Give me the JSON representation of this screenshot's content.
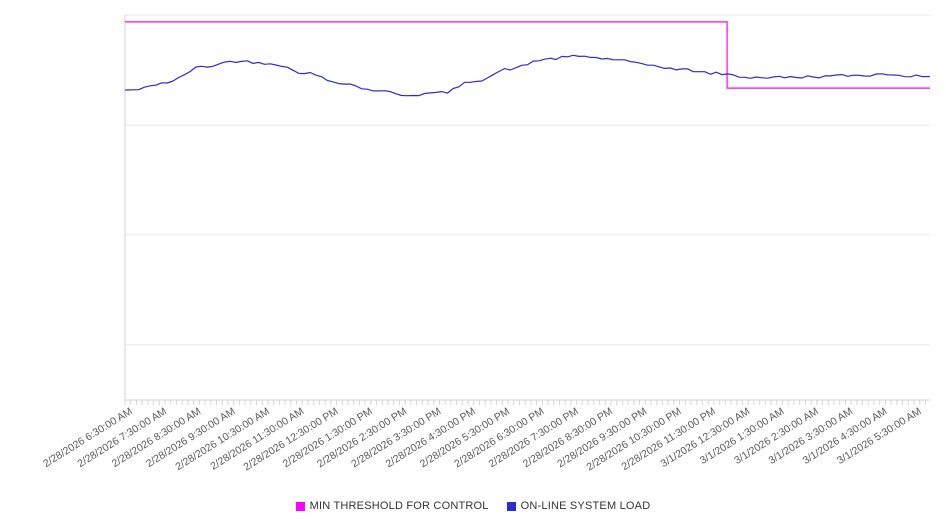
{
  "chart_data": {
    "type": "line",
    "title": "",
    "legend_position": "bottom",
    "value_scale": "percent-of-plot-height (no y-axis tick labels visible)",
    "ylim": [
      0,
      100
    ],
    "grid": {
      "horizontal_values": [
        14.3,
        42.9,
        71.4,
        100
      ],
      "color": "#e8e8e8",
      "axis_color": "#d0d0d0",
      "tick_color": "#d6d6d6",
      "label_color": "#595959"
    },
    "x_labels": [
      "2/28/2026 6:30:00 AM",
      "2/28/2026 7:30:00 AM",
      "2/28/2026 8:30:00 AM",
      "2/28/2026 9:30:00 AM",
      "2/28/2026 10:30:00 AM",
      "2/28/2026 11:30:00 AM",
      "2/28/2026 12:30:00 PM",
      "2/28/2026 1:30:00 PM",
      "2/28/2026 2:30:00 PM",
      "2/28/2026 3:30:00 PM",
      "2/28/2026 4:30:00 PM",
      "2/28/2026 5:30:00 PM",
      "2/28/2026 6:30:00 PM",
      "2/28/2026 7:30:00 PM",
      "2/28/2026 8:30:00 PM",
      "2/28/2026 9:30:00 PM",
      "2/28/2026 10:30:00 PM",
      "2/28/2026 11:30:00 PM",
      "3/1/2026 12:30:00 AM",
      "3/1/2026 1:30:00 AM",
      "3/1/2026 2:30:00 AM",
      "3/1/2026 3:30:00 AM",
      "3/1/2026 4:30:00 AM",
      "3/1/2026 5:30:00 AM"
    ],
    "series": [
      {
        "name": "MIN THRESHOLD FOR CONTROL",
        "color": "#ff00ff",
        "shape": "step",
        "value_before": 98.2,
        "value_after": 81.0,
        "change_at": "3/1/2026 12:00:00 AM",
        "change_fraction": 0.748
      },
      {
        "name": "ON-LINE SYSTEM LOAD",
        "color": "#2d2dcf",
        "shape": "noisy-line",
        "values": [
          80.5,
          82.5,
          86.5,
          88.0,
          87.5,
          85.0,
          82.5,
          80.5,
          79.2,
          79.8,
          83.0,
          86.0,
          88.5,
          89.3,
          88.5,
          87.0,
          85.8,
          84.8,
          83.8,
          83.8,
          84.0,
          84.3,
          84.6,
          84.0
        ]
      }
    ]
  }
}
